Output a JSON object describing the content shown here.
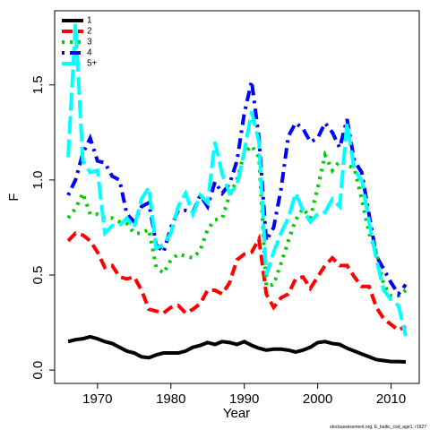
{
  "chart_data": {
    "type": "line",
    "xlabel": "Year",
    "ylabel": "F",
    "footnote": "stockassessment.org, E_baltic_cod_age1, r1927",
    "x": [
      1966,
      1967,
      1968,
      1969,
      1970,
      1971,
      1972,
      1973,
      1974,
      1975,
      1976,
      1977,
      1978,
      1979,
      1980,
      1981,
      1982,
      1983,
      1984,
      1985,
      1986,
      1987,
      1988,
      1989,
      1990,
      1991,
      1992,
      1993,
      1994,
      1995,
      1996,
      1997,
      1998,
      1999,
      2000,
      2001,
      2002,
      2003,
      2004,
      2005,
      2006,
      2007,
      2008,
      2009,
      2010,
      2011,
      2012
    ],
    "xlim": [
      1964.16,
      2013.84
    ],
    "xticks": [
      1970,
      1980,
      1990,
      2000,
      2010
    ],
    "ylim": [
      -0.07,
      1.89
    ],
    "yticks": [
      {
        "value": 0,
        "label": "0.0"
      },
      0.5,
      {
        "value": 1,
        "label": "1.0"
      },
      1.5
    ],
    "legend": "top-left",
    "series": [
      {
        "name": "1",
        "color": "#000000",
        "line_style": "solid",
        "values": [
          0.15,
          0.16,
          0.165,
          0.175,
          0.165,
          0.15,
          0.14,
          0.12,
          0.1,
          0.09,
          0.07,
          0.065,
          0.08,
          0.09,
          0.09,
          0.09,
          0.1,
          0.12,
          0.13,
          0.145,
          0.135,
          0.15,
          0.145,
          0.135,
          0.15,
          0.13,
          0.115,
          0.105,
          0.11,
          0.11,
          0.105,
          0.095,
          0.105,
          0.12,
          0.145,
          0.15,
          0.14,
          0.135,
          0.115,
          0.1,
          0.085,
          0.07,
          0.055,
          0.05,
          0.045,
          0.045,
          0.043
        ]
      },
      {
        "name": "2",
        "color": "#ff0000",
        "line_style": "dashed",
        "values": [
          0.68,
          0.72,
          0.71,
          0.68,
          0.62,
          0.54,
          0.55,
          0.49,
          0.48,
          0.49,
          0.42,
          0.32,
          0.31,
          0.3,
          0.33,
          0.34,
          0.3,
          0.32,
          0.35,
          0.42,
          0.42,
          0.4,
          0.46,
          0.58,
          0.61,
          0.62,
          0.69,
          0.4,
          0.33,
          0.38,
          0.4,
          0.48,
          0.49,
          0.43,
          0.49,
          0.55,
          0.59,
          0.55,
          0.55,
          0.49,
          0.44,
          0.44,
          0.33,
          0.27,
          0.24,
          0.21,
          0.23
        ]
      },
      {
        "name": "3",
        "color": "#00cd00",
        "line_style": "dotted",
        "values": [
          0.8,
          0.85,
          0.93,
          0.82,
          0.82,
          0.8,
          0.8,
          0.78,
          0.77,
          0.72,
          0.72,
          0.74,
          0.54,
          0.51,
          0.58,
          0.61,
          0.6,
          0.59,
          0.63,
          0.74,
          0.79,
          0.8,
          0.92,
          1.0,
          1.14,
          1.18,
          1.12,
          0.44,
          0.45,
          0.56,
          0.68,
          0.79,
          0.85,
          0.8,
          0.96,
          1.13,
          1.05,
          1.1,
          1.08,
          1.06,
          0.9,
          0.72,
          0.62,
          0.45,
          0.39,
          0.39,
          0.42
        ]
      },
      {
        "name": "4",
        "color": "#0000ff",
        "line_style": "dotdash",
        "values": [
          0.92,
          1.0,
          1.14,
          1.22,
          1.1,
          1.09,
          1.02,
          1.0,
          0.82,
          0.78,
          0.86,
          0.88,
          0.66,
          0.62,
          0.75,
          0.84,
          0.84,
          0.83,
          0.92,
          0.86,
          0.99,
          0.93,
          0.98,
          1.1,
          1.35,
          1.52,
          1.22,
          0.68,
          0.75,
          0.95,
          1.23,
          1.3,
          1.27,
          1.2,
          1.22,
          1.3,
          1.25,
          1.17,
          1.32,
          1.1,
          1.04,
          0.82,
          0.6,
          0.53,
          0.46,
          0.4,
          0.45
        ]
      },
      {
        "name": "5+",
        "color": "#00ffff",
        "line_style": "longdash",
        "values": [
          1.12,
          1.82,
          1.1,
          1.04,
          1.05,
          0.72,
          0.76,
          0.76,
          0.8,
          0.75,
          0.9,
          0.96,
          0.64,
          0.66,
          0.72,
          0.86,
          0.93,
          0.82,
          0.92,
          0.88,
          1.2,
          1.03,
          0.93,
          0.97,
          1.15,
          1.36,
          1.2,
          0.5,
          0.62,
          0.72,
          0.8,
          0.93,
          0.84,
          0.78,
          0.82,
          0.83,
          0.9,
          0.86,
          1.3,
          1.05,
          1.0,
          0.78,
          0.58,
          0.42,
          0.37,
          0.34,
          0.18
        ]
      }
    ]
  }
}
